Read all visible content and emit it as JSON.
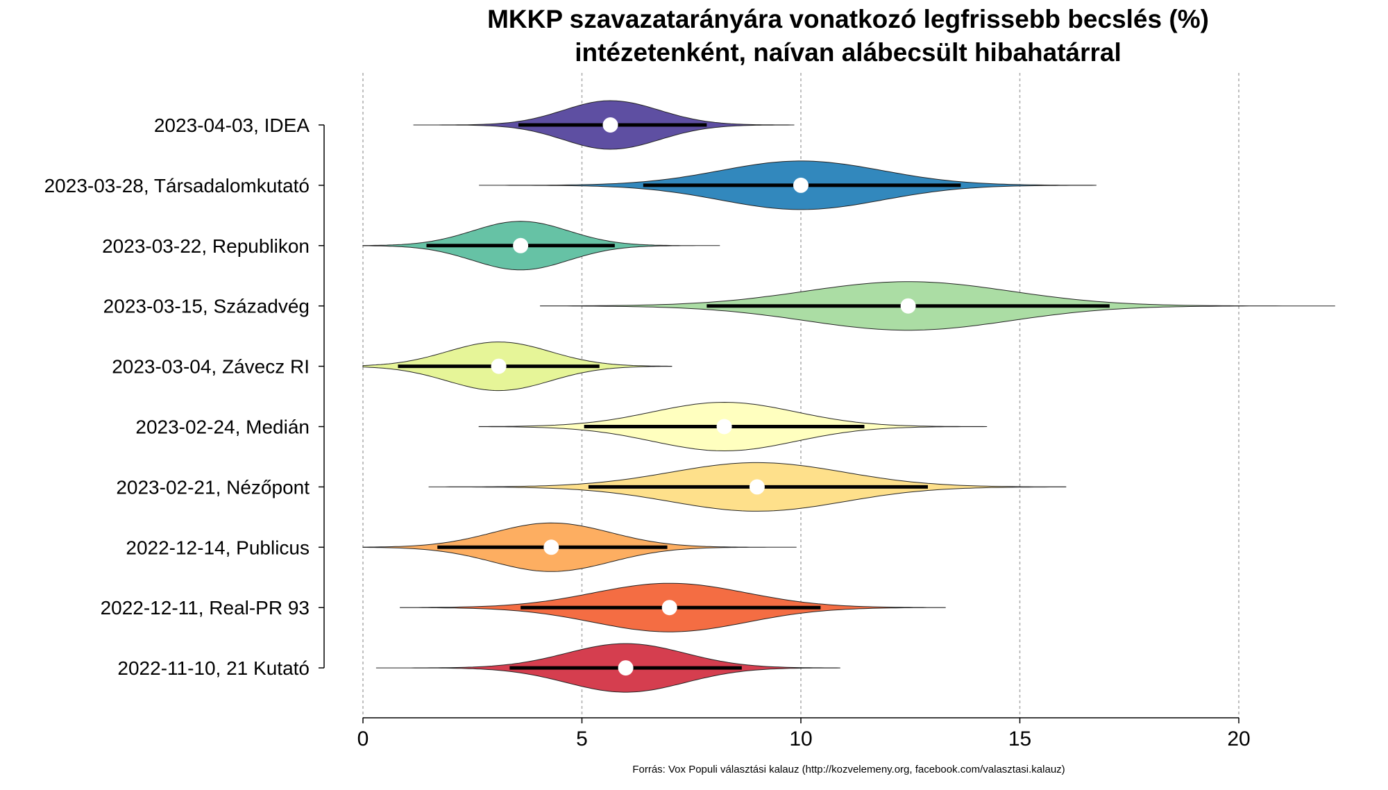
{
  "chart_data": {
    "type": "violin",
    "title": [
      "MKKP szavazatarányára vonatkozó legfrissebb becslés (%)",
      "intézetenként, naívan alábecsült hibahatárral"
    ],
    "xlabel": "",
    "ylabel": "",
    "xlim": [
      0,
      20
    ],
    "xticks": [
      "0",
      "5",
      "10",
      "15",
      "20"
    ],
    "grid": "vertical dashed",
    "source": "Forrás: Vox Populi választási kalauz (http://kozvelemeny.org, facebook.com/valasztasi.kalauz)",
    "series": [
      {
        "label": "2023-04-03, IDEA",
        "mean": 5.65,
        "ci": [
          3.55,
          7.85
        ],
        "range": [
          1.15,
          9.85
        ],
        "color": "#5E4FA2"
      },
      {
        "label": "2023-03-28, Társadalomkutató",
        "mean": 10.0,
        "ci": [
          6.4,
          13.65
        ],
        "range": [
          2.65,
          16.75
        ],
        "color": "#3288BD"
      },
      {
        "label": "2023-03-22, Republikon",
        "mean": 3.6,
        "ci": [
          1.45,
          5.75
        ],
        "range": [
          0,
          8.15
        ],
        "color": "#66C2A5"
      },
      {
        "label": "2023-03-15, Századvég",
        "mean": 12.45,
        "ci": [
          7.85,
          17.05
        ],
        "range": [
          4.05,
          22.2
        ],
        "color": "#ABDDA4"
      },
      {
        "label": "2023-03-04, Závecz RI",
        "mean": 3.1,
        "ci": [
          0.8,
          5.4
        ],
        "range": [
          0,
          7.05
        ],
        "color": "#E6F598"
      },
      {
        "label": "2023-02-24, Medián",
        "mean": 8.25,
        "ci": [
          5.05,
          11.45
        ],
        "range": [
          2.65,
          14.25
        ],
        "color": "#FFFFBF"
      },
      {
        "label": "2023-02-21, Nézőpont",
        "mean": 9.0,
        "ci": [
          5.15,
          12.9
        ],
        "range": [
          1.5,
          16.05
        ],
        "color": "#FEE08B"
      },
      {
        "label": "2022-12-14, Publicus",
        "mean": 4.3,
        "ci": [
          1.7,
          6.95
        ],
        "range": [
          0,
          9.9
        ],
        "color": "#FDAE61"
      },
      {
        "label": "2022-12-11, Real-PR 93",
        "mean": 7.0,
        "ci": [
          3.6,
          10.45
        ],
        "range": [
          0.85,
          13.3
        ],
        "color": "#F46D43"
      },
      {
        "label": "2022-11-10, 21 Kutató",
        "mean": 6.0,
        "ci": [
          3.35,
          8.65
        ],
        "range": [
          0.3,
          10.9
        ],
        "color": "#D53E4F"
      }
    ]
  }
}
